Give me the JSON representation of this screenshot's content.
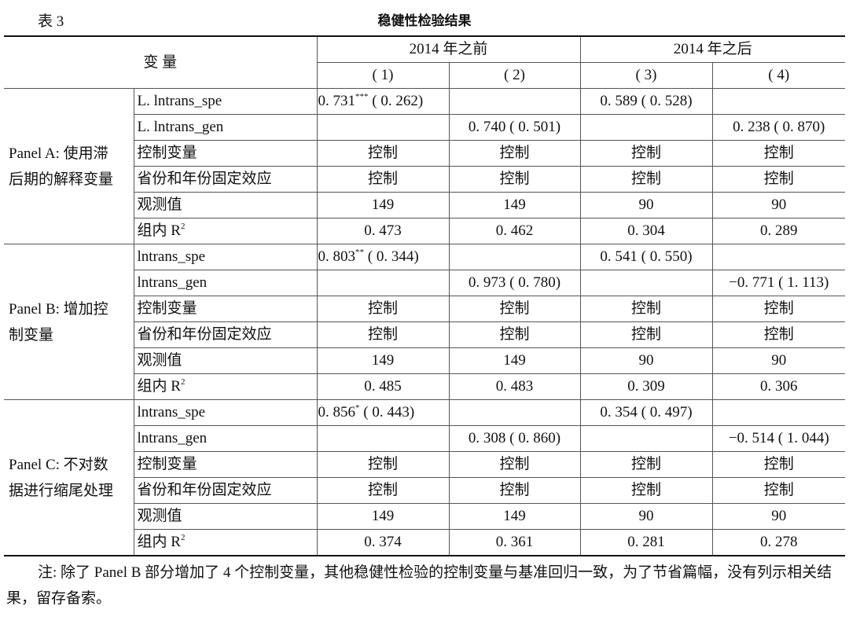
{
  "table_number": "表 3",
  "table_title": "稳健性检验结果",
  "header": {
    "variable_label": "变  量",
    "groups": [
      "2014 年之前",
      "2014 年之后"
    ],
    "columns": [
      "( 1)",
      "( 2)",
      "( 3)",
      "( 4)"
    ]
  },
  "panels": [
    {
      "label_lines": [
        "Panel A: 使用滞",
        "后期的解释变量"
      ],
      "rows": [
        {
          "var": "L. lntrans_spe",
          "cells": [
            {
              "v": "0. 731",
              "s": "***",
              "se": " ( 0. 262)"
            },
            {
              "v": ""
            },
            {
              "v": "0. 589 ( 0. 528)"
            },
            {
              "v": ""
            }
          ]
        },
        {
          "var": "L. lntrans_gen",
          "cells": [
            {
              "v": ""
            },
            {
              "v": "0. 740 ( 0. 501)"
            },
            {
              "v": ""
            },
            {
              "v": "0. 238 ( 0. 870)"
            }
          ]
        },
        {
          "var": "控制变量",
          "cells": [
            {
              "v": "控制"
            },
            {
              "v": "控制"
            },
            {
              "v": "控制"
            },
            {
              "v": "控制"
            }
          ]
        },
        {
          "var": "省份和年份固定效应",
          "cells": [
            {
              "v": "控制"
            },
            {
              "v": "控制"
            },
            {
              "v": "控制"
            },
            {
              "v": "控制"
            }
          ]
        },
        {
          "var": "观测值",
          "cells": [
            {
              "v": "149"
            },
            {
              "v": "149"
            },
            {
              "v": "90"
            },
            {
              "v": "90"
            }
          ]
        },
        {
          "var": "组内 R",
          "sup": "2",
          "cells": [
            {
              "v": "0. 473"
            },
            {
              "v": "0. 462"
            },
            {
              "v": "0. 304"
            },
            {
              "v": "0. 289"
            }
          ]
        }
      ]
    },
    {
      "label_lines": [
        "Panel B: 增加控",
        "制变量"
      ],
      "rows": [
        {
          "var": "lntrans_spe",
          "cells": [
            {
              "v": "0. 803",
              "s": "**",
              "se": " ( 0. 344)"
            },
            {
              "v": ""
            },
            {
              "v": "0. 541 ( 0. 550)"
            },
            {
              "v": ""
            }
          ]
        },
        {
          "var": "lntrans_gen",
          "cells": [
            {
              "v": ""
            },
            {
              "v": "0. 973 ( 0. 780)"
            },
            {
              "v": ""
            },
            {
              "v": "−0. 771 ( 1. 113)"
            }
          ]
        },
        {
          "var": "控制变量",
          "cells": [
            {
              "v": "控制"
            },
            {
              "v": "控制"
            },
            {
              "v": "控制"
            },
            {
              "v": "控制"
            }
          ]
        },
        {
          "var": "省份和年份固定效应",
          "cells": [
            {
              "v": "控制"
            },
            {
              "v": "控制"
            },
            {
              "v": "控制"
            },
            {
              "v": "控制"
            }
          ]
        },
        {
          "var": "观测值",
          "cells": [
            {
              "v": "149"
            },
            {
              "v": "149"
            },
            {
              "v": "90"
            },
            {
              "v": "90"
            }
          ]
        },
        {
          "var": "组内 R",
          "sup": "2",
          "cells": [
            {
              "v": "0. 485"
            },
            {
              "v": "0. 483"
            },
            {
              "v": "0. 309"
            },
            {
              "v": "0. 306"
            }
          ]
        }
      ]
    },
    {
      "label_lines": [
        "Panel C: 不对数",
        "据进行缩尾处理"
      ],
      "rows": [
        {
          "var": "lntrans_spe",
          "cells": [
            {
              "v": "0. 856",
              "s": "*",
              "se": " ( 0. 443)"
            },
            {
              "v": ""
            },
            {
              "v": "0. 354 ( 0. 497)"
            },
            {
              "v": ""
            }
          ]
        },
        {
          "var": "lntrans_gen",
          "cells": [
            {
              "v": ""
            },
            {
              "v": "0. 308 ( 0. 860)"
            },
            {
              "v": ""
            },
            {
              "v": "−0. 514 ( 1. 044)"
            }
          ]
        },
        {
          "var": "控制变量",
          "cells": [
            {
              "v": "控制"
            },
            {
              "v": "控制"
            },
            {
              "v": "控制"
            },
            {
              "v": "控制"
            }
          ]
        },
        {
          "var": "省份和年份固定效应",
          "cells": [
            {
              "v": "控制"
            },
            {
              "v": "控制"
            },
            {
              "v": "控制"
            },
            {
              "v": "控制"
            }
          ]
        },
        {
          "var": "观测值",
          "cells": [
            {
              "v": "149"
            },
            {
              "v": "149"
            },
            {
              "v": "90"
            },
            {
              "v": "90"
            }
          ]
        },
        {
          "var": "组内 R",
          "sup": "2",
          "cells": [
            {
              "v": "0. 374"
            },
            {
              "v": "0. 361"
            },
            {
              "v": "0. 281"
            },
            {
              "v": "0. 278"
            }
          ]
        }
      ]
    }
  ],
  "note": "注: 除了 Panel B 部分增加了 4 个控制变量，其他稳健性检验的控制变量与基准回归一致，为了节省篇幅，没有列示相关结果，留存备索。"
}
